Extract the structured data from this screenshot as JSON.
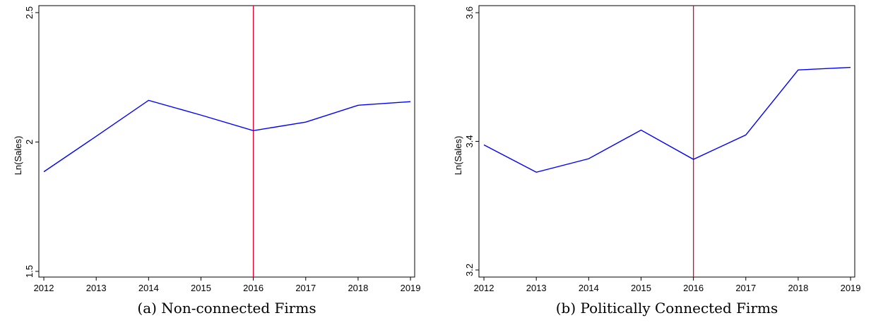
{
  "chart_data": [
    {
      "type": "line",
      "caption": "(a) Non-connected Firms",
      "y_label": "Ln(Sales)",
      "x": [
        2012,
        2013,
        2014,
        2015,
        2016,
        2017,
        2018,
        2019
      ],
      "series": [
        {
          "color": "#0000ff",
          "values": [
            1.885,
            2.022,
            2.161,
            2.104,
            2.044,
            2.077,
            2.142,
            2.156
          ]
        }
      ],
      "xlim": [
        2011.905,
        2019.08
      ],
      "xticks": [
        2012,
        2013,
        2014,
        2015,
        2016,
        2017,
        2018,
        2019
      ],
      "ylim": [
        1.478,
        2.527
      ],
      "yticks": [
        1.5,
        2,
        2.5
      ],
      "vline": 2016,
      "vline_color": "#e4002b"
    },
    {
      "type": "line",
      "caption": "(b) Politically Connected Firms",
      "y_label": "Ln(Sales)",
      "x": [
        2012,
        2013,
        2014,
        2015,
        2016,
        2017,
        2018,
        2019
      ],
      "series": [
        {
          "color": "#0000ff",
          "values": [
            3.3945,
            3.352,
            3.373,
            3.4175,
            3.372,
            3.41,
            3.511,
            3.515
          ]
        }
      ],
      "xlim": [
        2011.905,
        2019.08
      ],
      "xticks": [
        2012,
        2013,
        2014,
        2015,
        2016,
        2017,
        2018,
        2019
      ],
      "ylim": [
        3.189,
        3.611
      ],
      "yticks": [
        3.2,
        3.4,
        3.6
      ],
      "vline": 2016,
      "vline_color": "#e4002b"
    }
  ]
}
